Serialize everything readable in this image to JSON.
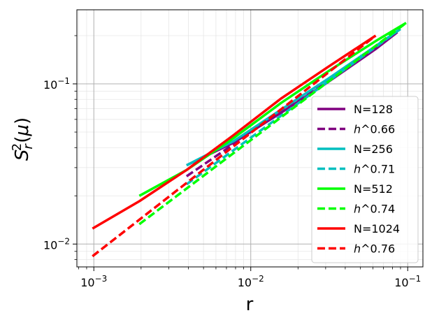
{
  "chart_data": {
    "type": "line",
    "xscale": "log",
    "yscale": "log",
    "xlabel": "r",
    "ylabel": "S_r^2(μ)",
    "xlim": [
      0.00078,
      0.125
    ],
    "ylim": [
      0.0072,
      0.29
    ],
    "x_ticks": [
      {
        "value": 0.001,
        "base": "10",
        "exp": "−3"
      },
      {
        "value": 0.01,
        "base": "10",
        "exp": "−2"
      },
      {
        "value": 0.1,
        "base": "10",
        "exp": "−1"
      }
    ],
    "y_ticks": [
      {
        "value": 0.01,
        "base": "10",
        "exp": "−2"
      },
      {
        "value": 0.1,
        "base": "10",
        "exp": "−1"
      }
    ],
    "grid": true,
    "legend_position": "lower-right",
    "series": [
      {
        "name": "N=128",
        "color": "#800080",
        "dash": "solid",
        "x": [
          0.0039,
          0.0078,
          0.0156,
          0.03125,
          0.0625,
          0.0859
        ],
        "y": [
          0.031,
          0.043,
          0.066,
          0.103,
          0.165,
          0.21
        ]
      },
      {
        "name": "h^0.66",
        "color": "#800080",
        "dash": "dashed",
        "x": [
          0.0039,
          0.0859
        ],
        "y": [
          0.0265,
          0.21
        ]
      },
      {
        "name": "N=256",
        "color": "#00bfbf",
        "dash": "solid",
        "x": [
          0.0039,
          0.0078,
          0.0156,
          0.03125,
          0.0625,
          0.0898
        ],
        "y": [
          0.031,
          0.044,
          0.069,
          0.108,
          0.172,
          0.22
        ]
      },
      {
        "name": "h^0.71",
        "color": "#00bfbf",
        "dash": "dashed",
        "x": [
          0.0039,
          0.0898
        ],
        "y": [
          0.0236,
          0.22
        ]
      },
      {
        "name": "N=512",
        "color": "#00ff00",
        "dash": "solid",
        "x": [
          0.00195,
          0.0039,
          0.0078,
          0.0156,
          0.03125,
          0.0625,
          0.0977
        ],
        "y": [
          0.02,
          0.029,
          0.046,
          0.076,
          0.12,
          0.185,
          0.24
        ]
      },
      {
        "name": "h^0.74",
        "color": "#00ff00",
        "dash": "dashed",
        "x": [
          0.00195,
          0.0977
        ],
        "y": [
          0.0133,
          0.24
        ]
      },
      {
        "name": "N=1024",
        "color": "#ff0000",
        "dash": "solid",
        "x": [
          0.00098,
          0.00195,
          0.0039,
          0.0078,
          0.0156,
          0.03125,
          0.0625
        ],
        "y": [
          0.0125,
          0.0185,
          0.029,
          0.048,
          0.081,
          0.128,
          0.2
        ]
      },
      {
        "name": "h^0.76",
        "color": "#ff0000",
        "dash": "dashed",
        "x": [
          0.00098,
          0.0625
        ],
        "y": [
          0.0084,
          0.2
        ]
      }
    ]
  }
}
